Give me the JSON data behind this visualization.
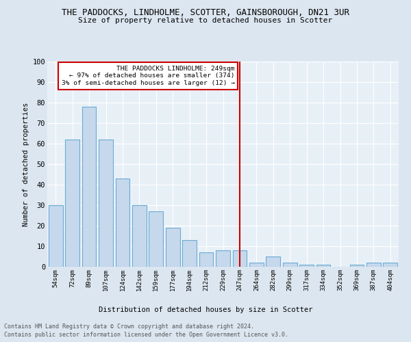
{
  "title1": "THE PADDOCKS, LINDHOLME, SCOTTER, GAINSBOROUGH, DN21 3UR",
  "title2": "Size of property relative to detached houses in Scotter",
  "xlabel": "Distribution of detached houses by size in Scotter",
  "ylabel": "Number of detached properties",
  "categories": [
    "54sqm",
    "72sqm",
    "89sqm",
    "107sqm",
    "124sqm",
    "142sqm",
    "159sqm",
    "177sqm",
    "194sqm",
    "212sqm",
    "229sqm",
    "247sqm",
    "264sqm",
    "282sqm",
    "299sqm",
    "317sqm",
    "334sqm",
    "352sqm",
    "369sqm",
    "387sqm",
    "404sqm"
  ],
  "values": [
    30,
    62,
    78,
    62,
    43,
    30,
    27,
    19,
    13,
    7,
    8,
    8,
    2,
    5,
    2,
    1,
    1,
    0,
    1,
    2,
    2
  ],
  "bar_color": "#c5d8ec",
  "bar_edge_color": "#6aaad4",
  "ref_line_idx": 11,
  "ref_line_color": "#cc0000",
  "annotation_title": "THE PADDOCKS LINDHOLME: 249sqm",
  "annotation_line1": "← 97% of detached houses are smaller (374)",
  "annotation_line2": "3% of semi-detached houses are larger (12) →",
  "annotation_box_color": "#cc0000",
  "footer1": "Contains HM Land Registry data © Crown copyright and database right 2024.",
  "footer2": "Contains public sector information licensed under the Open Government Licence v3.0.",
  "background_color": "#dce6f0",
  "plot_bg_color": "#e8f0f7",
  "ylim": [
    0,
    100
  ],
  "yticks": [
    0,
    10,
    20,
    30,
    40,
    50,
    60,
    70,
    80,
    90,
    100
  ]
}
